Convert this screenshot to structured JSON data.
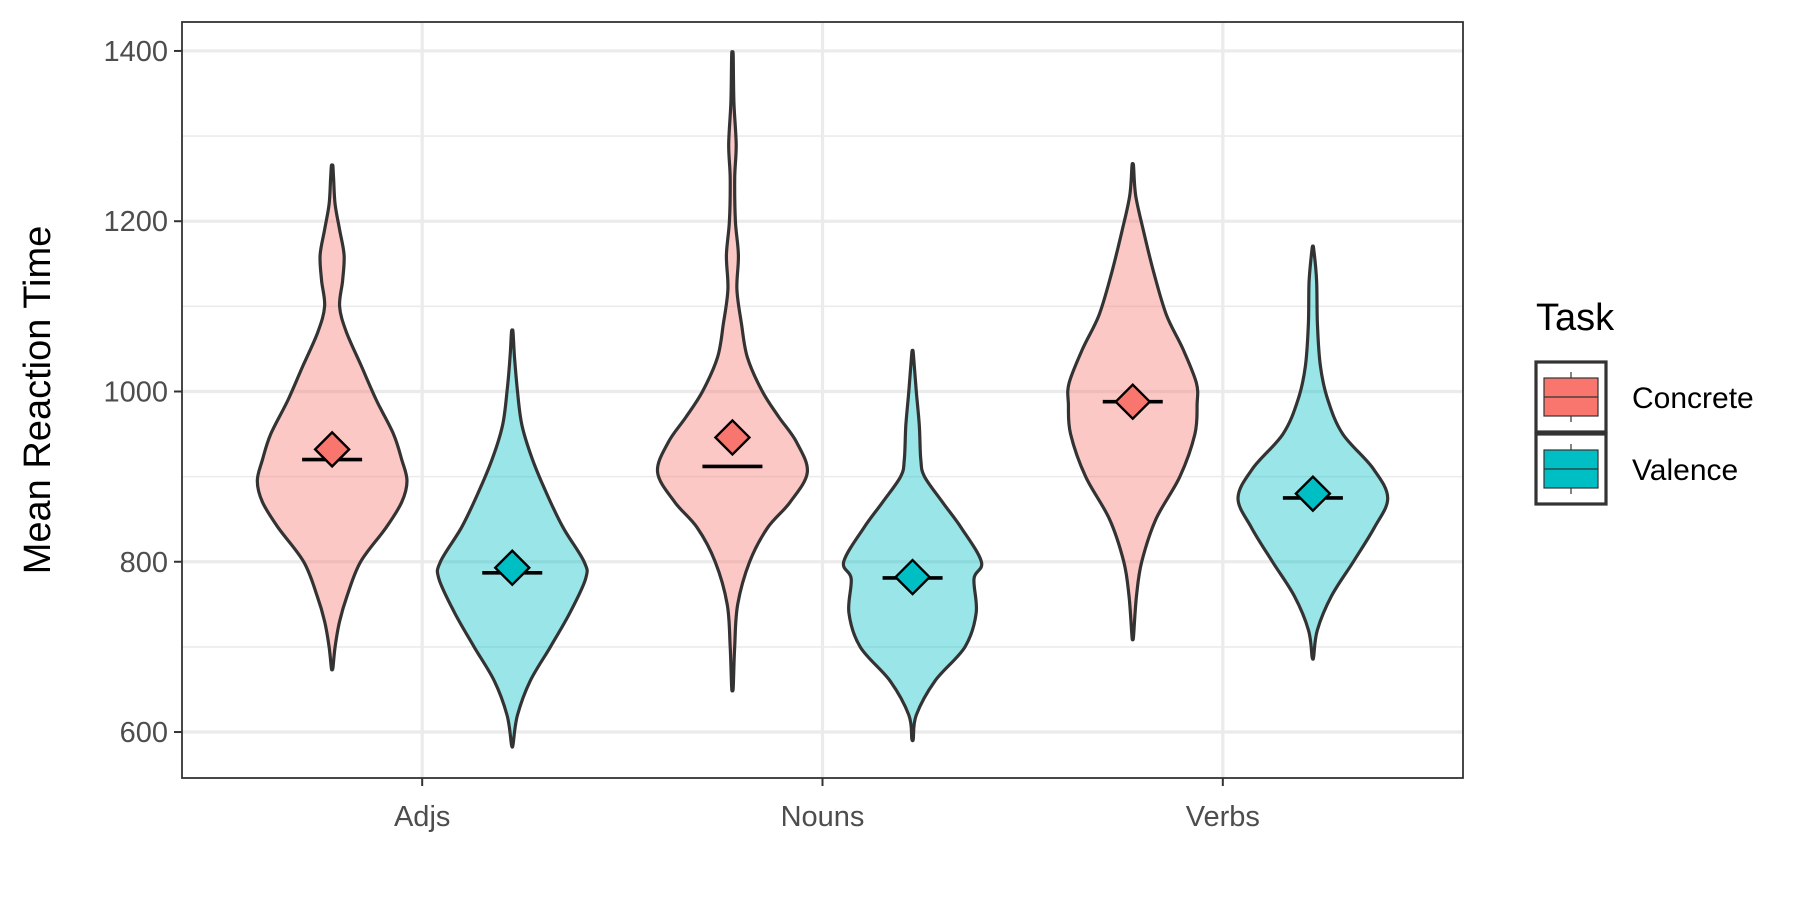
{
  "chart_data": {
    "type": "violin",
    "ylabel": "Mean Reaction Time",
    "xlabel": "",
    "ylim": [
      546,
      1434
    ],
    "yticks": [
      600,
      800,
      1000,
      1200,
      1400
    ],
    "ytick_labels": [
      "600",
      "800",
      "1000",
      "1200",
      "1400"
    ],
    "categories": [
      "Adjs",
      "Nouns",
      "Verbs"
    ],
    "grid": true,
    "legend": {
      "title": "Task",
      "position": "right",
      "entries": [
        "Concrete",
        "Valence"
      ]
    },
    "series": [
      {
        "name": "Concrete",
        "fill": "#F8766D",
        "groups": [
          {
            "category": "Adjs",
            "mean": 932,
            "median": 920,
            "min": 675,
            "max": 1265,
            "density": [
              [
                675,
                0.01
              ],
              [
                700,
                0.04
              ],
              [
                730,
                0.1
              ],
              [
                760,
                0.2
              ],
              [
                800,
                0.38
              ],
              [
                840,
                0.72
              ],
              [
                870,
                0.93
              ],
              [
                895,
                1.0
              ],
              [
                920,
                0.93
              ],
              [
                950,
                0.82
              ],
              [
                990,
                0.59
              ],
              [
                1030,
                0.39
              ],
              [
                1070,
                0.19
              ],
              [
                1100,
                0.1
              ],
              [
                1130,
                0.14
              ],
              [
                1160,
                0.16
              ],
              [
                1190,
                0.1
              ],
              [
                1220,
                0.04
              ],
              [
                1250,
                0.02
              ],
              [
                1265,
                0.01
              ]
            ]
          },
          {
            "category": "Nouns",
            "mean": 946,
            "median": 912,
            "min": 652,
            "max": 1395,
            "density": [
              [
                652,
                0.01
              ],
              [
                700,
                0.03
              ],
              [
                750,
                0.07
              ],
              [
                800,
                0.23
              ],
              [
                840,
                0.47
              ],
              [
                870,
                0.77
              ],
              [
                905,
                1.0
              ],
              [
                940,
                0.86
              ],
              [
                970,
                0.62
              ],
              [
                1000,
                0.4
              ],
              [
                1040,
                0.2
              ],
              [
                1080,
                0.12
              ],
              [
                1120,
                0.06
              ],
              [
                1160,
                0.08
              ],
              [
                1200,
                0.04
              ],
              [
                1250,
                0.03
              ],
              [
                1290,
                0.05
              ],
              [
                1340,
                0.02
              ],
              [
                1395,
                0.01
              ]
            ]
          },
          {
            "category": "Verbs",
            "mean": 988,
            "median": 988,
            "min": 712,
            "max": 1265,
            "density": [
              [
                712,
                0.01
              ],
              [
                760,
                0.05
              ],
              [
                800,
                0.12
              ],
              [
                850,
                0.31
              ],
              [
                900,
                0.63
              ],
              [
                950,
                0.83
              ],
              [
                985,
                0.86
              ],
              [
                1010,
                0.85
              ],
              [
                1050,
                0.67
              ],
              [
                1090,
                0.45
              ],
              [
                1140,
                0.28
              ],
              [
                1190,
                0.14
              ],
              [
                1230,
                0.04
              ],
              [
                1265,
                0.01
              ]
            ]
          }
        ]
      },
      {
        "name": "Valence",
        "fill": "#00BFC4",
        "groups": [
          {
            "category": "Adjs",
            "mean": 793,
            "median": 787,
            "min": 585,
            "max": 1070,
            "density": [
              [
                585,
                0.01
              ],
              [
                620,
                0.07
              ],
              [
                660,
                0.24
              ],
              [
                700,
                0.51
              ],
              [
                740,
                0.77
              ],
              [
                780,
                0.98
              ],
              [
                800,
                0.96
              ],
              [
                840,
                0.68
              ],
              [
                880,
                0.46
              ],
              [
                920,
                0.27
              ],
              [
                960,
                0.13
              ],
              [
                1000,
                0.07
              ],
              [
                1040,
                0.03
              ],
              [
                1070,
                0.01
              ]
            ]
          },
          {
            "category": "Nouns",
            "mean": 782,
            "median": 781,
            "min": 592,
            "max": 1045,
            "density": [
              [
                592,
                0.01
              ],
              [
                620,
                0.05
              ],
              [
                660,
                0.3
              ],
              [
                700,
                0.7
              ],
              [
                740,
                0.85
              ],
              [
                780,
                0.82
              ],
              [
                800,
                0.92
              ],
              [
                840,
                0.65
              ],
              [
                870,
                0.4
              ],
              [
                900,
                0.16
              ],
              [
                920,
                0.11
              ],
              [
                960,
                0.09
              ],
              [
                1000,
                0.05
              ],
              [
                1045,
                0.01
              ]
            ]
          },
          {
            "category": "Verbs",
            "mean": 880,
            "median": 875,
            "min": 688,
            "max": 1168,
            "density": [
              [
                688,
                0.01
              ],
              [
                720,
                0.06
              ],
              [
                760,
                0.25
              ],
              [
                800,
                0.54
              ],
              [
                840,
                0.82
              ],
              [
                875,
                1.0
              ],
              [
                910,
                0.8
              ],
              [
                950,
                0.4
              ],
              [
                990,
                0.2
              ],
              [
                1030,
                0.1
              ],
              [
                1080,
                0.06
              ],
              [
                1130,
                0.05
              ],
              [
                1168,
                0.01
              ]
            ]
          }
        ]
      }
    ]
  }
}
